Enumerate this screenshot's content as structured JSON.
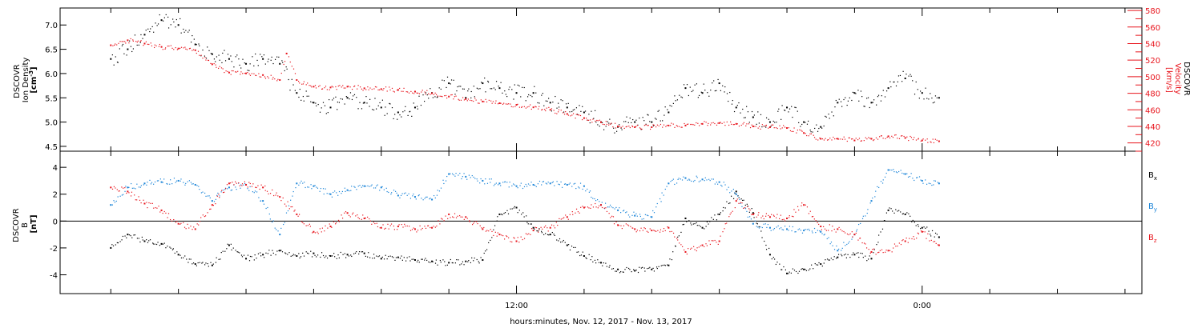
{
  "chart_data": [
    {
      "type": "scatter",
      "panel": "top",
      "left_axis": {
        "label_lines": [
          "DSCOVR",
          "Ion Density"
        ],
        "units": "[cm",
        "units_exp": "-3",
        "units_end": "]",
        "ylim": [
          4.4,
          7.35
        ],
        "ticks": [
          "4.5",
          "5.0",
          "5.5",
          "6.0",
          "6.5",
          "7.0"
        ],
        "tick_values": [
          4.5,
          5.0,
          5.5,
          6.0,
          6.5,
          7.0
        ]
      },
      "right_axis": {
        "label_lines": [
          "DSCOVR",
          "Velocity",
          "[km/s]"
        ],
        "ylim": [
          410,
          583
        ],
        "ticks": [
          "420",
          "440",
          "460",
          "480",
          "500",
          "520",
          "540",
          "560",
          "580"
        ],
        "tick_values": [
          420,
          440,
          460,
          480,
          500,
          520,
          540,
          560,
          580
        ],
        "color": "#e8141c"
      },
      "series": [
        {
          "axis": "left",
          "color": "#000000",
          "x": [
            0.0,
            0.5,
            1.0,
            1.5,
            2.0,
            2.5,
            3.0,
            3.5,
            4.0,
            4.5,
            5.0,
            5.5,
            6.0,
            6.5,
            7.0,
            7.5,
            8.0,
            8.5,
            9.0,
            9.5,
            10.0,
            10.5,
            11.0,
            11.5,
            12.0,
            12.5,
            13.0,
            13.5,
            14.0,
            14.5,
            15.0,
            15.5,
            16.0,
            16.5,
            17.0,
            17.5,
            18.0,
            18.5,
            19.0,
            19.5,
            20.0,
            20.5,
            21.0,
            21.5,
            22.0,
            22.5,
            23.0,
            23.5,
            24.0,
            24.5
          ],
          "values": [
            6.3,
            6.5,
            6.8,
            7.1,
            7.0,
            6.6,
            6.4,
            6.3,
            6.2,
            6.3,
            6.2,
            5.6,
            5.4,
            5.3,
            5.5,
            5.4,
            5.3,
            5.2,
            5.3,
            5.6,
            5.8,
            5.5,
            5.8,
            5.7,
            5.6,
            5.6,
            5.4,
            5.3,
            5.2,
            5.0,
            4.9,
            5.0,
            5.0,
            5.2,
            5.7,
            5.6,
            5.8,
            5.3,
            5.1,
            5.0,
            5.3,
            5.0,
            4.9,
            5.4,
            5.6,
            5.4,
            5.7,
            5.9,
            5.6,
            5.5
          ]
        },
        {
          "axis": "right",
          "color": "#e8141c",
          "x": [
            0.0,
            0.5,
            1.0,
            1.5,
            2.0,
            2.5,
            3.0,
            3.5,
            4.0,
            4.5,
            5.0,
            5.2,
            5.5,
            6.0,
            6.5,
            7.0,
            7.5,
            8.0,
            8.5,
            9.0,
            9.5,
            10.0,
            10.5,
            11.0,
            11.5,
            12.0,
            12.5,
            13.0,
            13.5,
            14.0,
            14.5,
            15.0,
            15.5,
            16.0,
            16.5,
            17.0,
            17.5,
            18.0,
            18.5,
            19.0,
            19.5,
            20.0,
            20.5,
            21.0,
            21.5,
            22.0,
            22.5,
            23.0,
            23.5,
            24.0,
            24.5
          ],
          "values": [
            538,
            544,
            540,
            536,
            534,
            532,
            515,
            505,
            504,
            502,
            496,
            528,
            496,
            488,
            487,
            488,
            486,
            485,
            484,
            482,
            480,
            476,
            473,
            470,
            468,
            466,
            463,
            460,
            455,
            450,
            445,
            440,
            439,
            439,
            441,
            441,
            443,
            444,
            443,
            440,
            439,
            438,
            432,
            425,
            425,
            423,
            425,
            428,
            426,
            423,
            422
          ]
        }
      ]
    },
    {
      "type": "scatter",
      "panel": "bottom",
      "left_axis": {
        "label_lines": [
          "DSCOVR",
          "B",
          "[nT]"
        ],
        "ylim": [
          -5.4,
          5.2
        ],
        "ticks": [
          "-4",
          "-2",
          "0",
          "2",
          "4"
        ],
        "tick_values": [
          -4,
          -2,
          0,
          2,
          4
        ]
      },
      "series": [
        {
          "name": "B",
          "sub": "x",
          "color": "#000000",
          "x": [
            0.0,
            0.5,
            1.0,
            1.5,
            2.0,
            2.5,
            3.0,
            3.5,
            4.0,
            4.5,
            5.0,
            5.5,
            6.0,
            6.5,
            7.0,
            7.5,
            8.0,
            8.5,
            9.0,
            9.5,
            10.0,
            10.5,
            11.0,
            11.5,
            12.0,
            12.5,
            13.0,
            13.5,
            14.0,
            14.5,
            15.0,
            15.5,
            16.0,
            16.5,
            17.0,
            17.5,
            18.0,
            18.5,
            19.0,
            19.5,
            20.0,
            20.5,
            21.0,
            21.5,
            22.0,
            22.5,
            23.0,
            23.5,
            24.0,
            24.5
          ],
          "values": [
            -2.0,
            -1.0,
            -1.5,
            -1.7,
            -2.5,
            -3.2,
            -3.3,
            -1.8,
            -2.8,
            -2.5,
            -2.2,
            -2.6,
            -2.4,
            -2.6,
            -2.5,
            -2.4,
            -2.8,
            -2.7,
            -2.9,
            -3.0,
            -3.1,
            -3.0,
            -2.9,
            0.5,
            1.0,
            -0.5,
            -1.0,
            -1.8,
            -2.6,
            -3.1,
            -3.6,
            -3.7,
            -3.6,
            -3.3,
            0.2,
            -0.5,
            0.5,
            2.2,
            0.6,
            -2.5,
            -3.9,
            -3.6,
            -3.2,
            -2.7,
            -2.5,
            -2.8,
            0.8,
            0.5,
            -0.5,
            -1.2
          ]
        },
        {
          "name": "B",
          "sub": "y",
          "color": "#1a84d8",
          "x": [
            0.0,
            0.5,
            1.0,
            1.5,
            2.0,
            2.5,
            3.0,
            3.5,
            4.0,
            4.5,
            5.0,
            5.5,
            6.0,
            6.5,
            7.0,
            7.5,
            8.0,
            8.5,
            9.0,
            9.5,
            10.0,
            10.5,
            11.0,
            11.5,
            12.0,
            12.5,
            13.0,
            13.5,
            14.0,
            14.5,
            15.0,
            15.5,
            16.0,
            16.5,
            17.0,
            17.5,
            18.0,
            18.5,
            19.0,
            19.5,
            20.0,
            20.5,
            21.0,
            21.5,
            22.0,
            22.5,
            23.0,
            23.5,
            24.0,
            24.5
          ],
          "values": [
            1.2,
            2.5,
            2.8,
            2.9,
            3.0,
            2.7,
            1.5,
            2.5,
            2.7,
            1.5,
            -1.0,
            2.8,
            2.6,
            2.0,
            2.3,
            2.6,
            2.5,
            1.9,
            1.8,
            1.6,
            3.5,
            3.3,
            3.0,
            2.8,
            2.6,
            2.7,
            2.8,
            2.7,
            2.6,
            1.2,
            0.8,
            0.4,
            0.3,
            2.8,
            3.2,
            3.1,
            2.9,
            2.0,
            -0.2,
            -0.5,
            -0.6,
            -0.7,
            -0.8,
            -2.2,
            -1.0,
            1.5,
            3.8,
            3.5,
            3.0,
            2.8
          ]
        },
        {
          "name": "B",
          "sub": "z",
          "color": "#e8141c",
          "x": [
            0.0,
            0.5,
            1.0,
            1.5,
            2.0,
            2.5,
            3.0,
            3.5,
            4.0,
            4.5,
            5.0,
            5.5,
            6.0,
            6.5,
            7.0,
            7.5,
            8.0,
            8.5,
            9.0,
            9.5,
            10.0,
            10.5,
            11.0,
            11.5,
            12.0,
            12.5,
            13.0,
            13.5,
            14.0,
            14.5,
            15.0,
            15.5,
            16.0,
            16.5,
            17.0,
            17.5,
            18.0,
            18.5,
            19.0,
            19.5,
            20.0,
            20.5,
            21.0,
            21.5,
            22.0,
            22.5,
            23.0,
            23.5,
            24.0,
            24.5
          ],
          "values": [
            2.5,
            2.2,
            1.3,
            0.8,
            -0.2,
            -0.6,
            1.2,
            2.8,
            2.7,
            2.5,
            1.8,
            0.5,
            -0.8,
            -0.4,
            0.6,
            0.2,
            -0.5,
            -0.4,
            -0.6,
            -0.5,
            0.5,
            0.3,
            -0.6,
            -1.0,
            -1.5,
            -0.7,
            -0.5,
            0.3,
            1.0,
            1.2,
            -0.3,
            -0.6,
            -0.7,
            -0.5,
            -2.3,
            -1.8,
            -1.5,
            1.5,
            0.5,
            0.3,
            0.2,
            1.2,
            -0.4,
            -0.6,
            -1.0,
            -2.3,
            -2.2,
            -1.5,
            -0.8,
            -1.8
          ]
        }
      ]
    }
  ],
  "x_axis": {
    "tick_labels": [
      {
        "label": "12:00",
        "value": 12
      },
      {
        "label": "0:00",
        "value": 24
      }
    ],
    "xlim": [
      -1.5,
      30.5
    ],
    "minor_tick_hours": [
      0,
      2,
      4,
      6,
      8,
      10,
      12,
      14,
      16,
      18,
      20,
      22,
      24,
      26,
      28,
      30
    ],
    "title": "hours:minutes, Nov. 12, 2017 - Nov. 13, 2017"
  }
}
